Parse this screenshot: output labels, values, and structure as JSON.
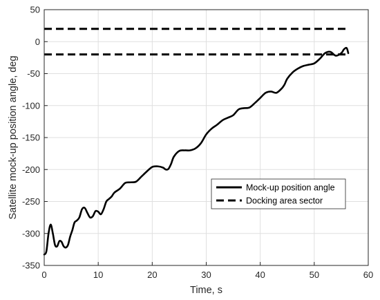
{
  "chart_data": {
    "type": "line",
    "title": "",
    "xlabel": "Time, s",
    "ylabel": "Satellite mock-up position angle, deg",
    "xlim": [
      0,
      60
    ],
    "ylim": [
      -350,
      50
    ],
    "xticks": [
      0,
      10,
      20,
      30,
      40,
      50,
      60
    ],
    "yticks": [
      50,
      0,
      -50,
      -100,
      -150,
      -200,
      -250,
      -300,
      -350
    ],
    "grid": true,
    "legend_position": "lower-right",
    "colors": {
      "series": "#000000",
      "grid": "#dfdfdf",
      "axes": "#262626",
      "background": "#ffffff"
    },
    "series": [
      {
        "name": "Mock-up position angle",
        "style": "solid",
        "x": [
          0,
          0.4,
          0.8,
          1.2,
          1.6,
          2.0,
          2.4,
          2.8,
          3.2,
          3.6,
          4.0,
          4.4,
          4.8,
          5.2,
          5.6,
          6.0,
          6.5,
          7.0,
          7.5,
          8.0,
          8.5,
          9.0,
          9.5,
          10.0,
          10.5,
          11.0,
          11.5,
          12.0,
          12.5,
          13.0,
          14.0,
          15.0,
          16.0,
          17.0,
          18.0,
          19.0,
          20.0,
          21.0,
          22.0,
          22.5,
          23.0,
          23.5,
          24.0,
          25.0,
          26.0,
          27.0,
          28.0,
          29.0,
          30.0,
          31.0,
          32.0,
          33.0,
          34.0,
          35.0,
          36.0,
          37.0,
          38.0,
          39.0,
          40.0,
          41.0,
          42.0,
          43.0,
          44.0,
          44.5,
          45.0,
          46.0,
          47.0,
          48.0,
          49.0,
          50.0,
          51.0,
          52.0,
          53.0,
          54.0,
          55.0,
          55.5,
          56.0,
          56.3
        ],
        "y": [
          -333,
          -328,
          -300,
          -286,
          -300,
          -318,
          -320,
          -312,
          -313,
          -320,
          -322,
          -318,
          -305,
          -295,
          -283,
          -280,
          -275,
          -262,
          -260,
          -268,
          -275,
          -273,
          -265,
          -266,
          -270,
          -262,
          -250,
          -246,
          -242,
          -236,
          -230,
          -221,
          -220,
          -219,
          -211,
          -203,
          -196,
          -195,
          -197,
          -200,
          -199,
          -191,
          -180,
          -171,
          -170,
          -170,
          -167,
          -159,
          -145,
          -136,
          -130,
          -123,
          -119,
          -115,
          -106,
          -104,
          -103,
          -96,
          -88,
          -80,
          -78,
          -80,
          -73,
          -67,
          -58,
          -48,
          -42,
          -38,
          -36,
          -34,
          -27,
          -18,
          -16,
          -22,
          -18,
          -12,
          -10,
          -18
        ]
      },
      {
        "name": "Docking area sector",
        "style": "dashed",
        "lines": [
          {
            "x": [
              0,
              56.5
            ],
            "y": [
              20,
              20
            ]
          },
          {
            "x": [
              0,
              56.5
            ],
            "y": [
              -20,
              -20
            ]
          }
        ]
      }
    ]
  }
}
